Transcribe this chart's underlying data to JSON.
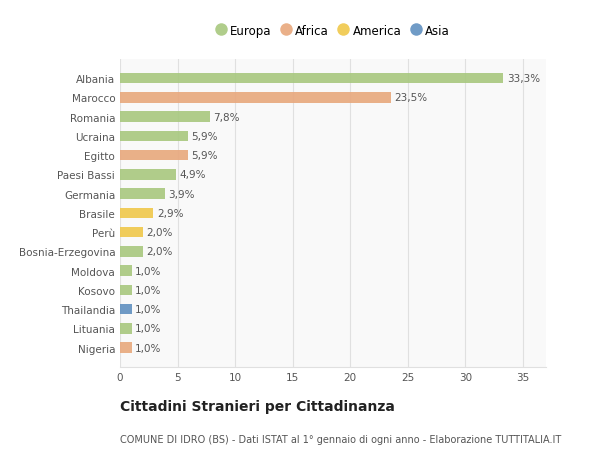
{
  "countries": [
    "Albania",
    "Marocco",
    "Romania",
    "Ucraina",
    "Egitto",
    "Paesi Bassi",
    "Germania",
    "Brasile",
    "Perù",
    "Bosnia-Erzegovina",
    "Moldova",
    "Kosovo",
    "Thailandia",
    "Lituania",
    "Nigeria"
  ],
  "values": [
    33.3,
    23.5,
    7.8,
    5.9,
    5.9,
    4.9,
    3.9,
    2.9,
    2.0,
    2.0,
    1.0,
    1.0,
    1.0,
    1.0,
    1.0
  ],
  "labels": [
    "33,3%",
    "23,5%",
    "7,8%",
    "5,9%",
    "5,9%",
    "4,9%",
    "3,9%",
    "2,9%",
    "2,0%",
    "2,0%",
    "1,0%",
    "1,0%",
    "1,0%",
    "1,0%",
    "1,0%"
  ],
  "continents": [
    "Europa",
    "Africa",
    "Europa",
    "Europa",
    "Africa",
    "Europa",
    "Europa",
    "America",
    "America",
    "Europa",
    "Europa",
    "Europa",
    "Asia",
    "Europa",
    "Africa"
  ],
  "colors": {
    "Europa": "#a8c87e",
    "Africa": "#e8a87c",
    "America": "#f0c84a",
    "Asia": "#6090c0"
  },
  "legend_order": [
    "Europa",
    "Africa",
    "America",
    "Asia"
  ],
  "title": "Cittadini Stranieri per Cittadinanza",
  "subtitle": "COMUNE DI IDRO (BS) - Dati ISTAT al 1° gennaio di ogni anno - Elaborazione TUTTITALIA.IT",
  "xlim": [
    0,
    37
  ],
  "xticks": [
    0,
    5,
    10,
    15,
    20,
    25,
    30,
    35
  ],
  "background_color": "#ffffff",
  "plot_bg_color": "#f9f9f9",
  "grid_color": "#e0e0e0",
  "bar_height": 0.55,
  "label_fontsize": 7.5,
  "tick_fontsize": 7.5,
  "title_fontsize": 10,
  "subtitle_fontsize": 7
}
